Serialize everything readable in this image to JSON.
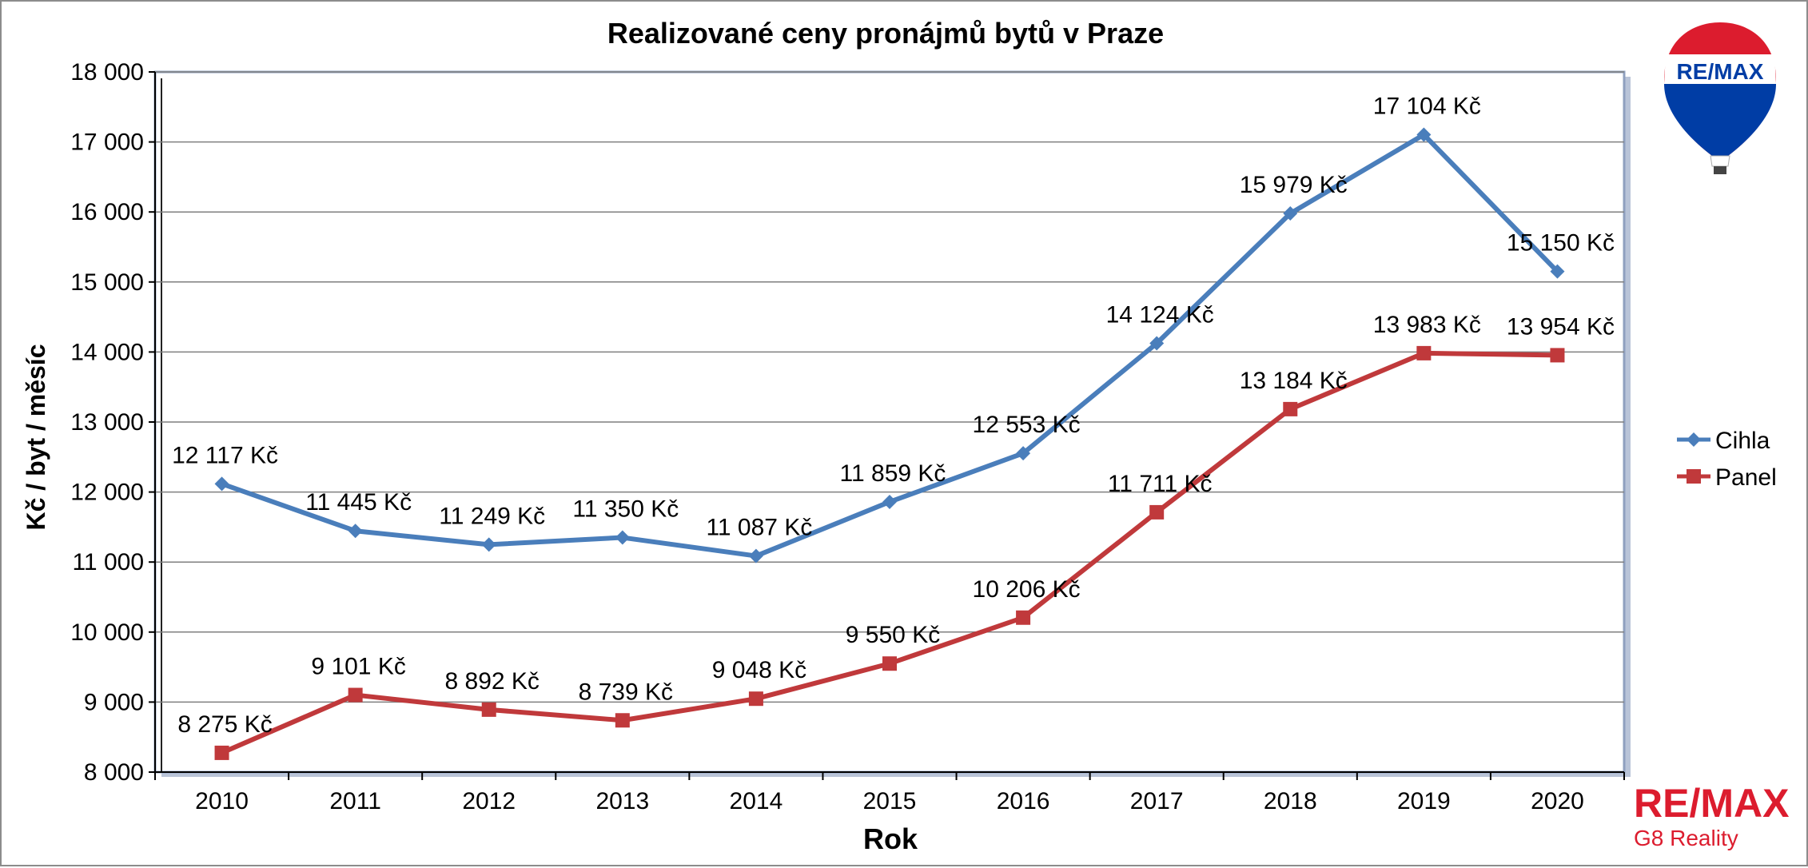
{
  "chart_data": {
    "type": "line",
    "title": "Realizované ceny pronájmů bytů v Praze",
    "xlabel": "Rok",
    "ylabel": "Kč / byt / měsíc",
    "categories": [
      "2010",
      "2011",
      "2012",
      "2013",
      "2014",
      "2015",
      "2016",
      "2017",
      "2018",
      "2019",
      "2020"
    ],
    "ylim": [
      8000,
      18000
    ],
    "yticks": [
      8000,
      9000,
      10000,
      11000,
      12000,
      13000,
      14000,
      15000,
      16000,
      17000,
      18000
    ],
    "ytick_labels": [
      "8 000",
      "9 000",
      "10 000",
      "11 000",
      "12 000",
      "13 000",
      "14 000",
      "15 000",
      "16 000",
      "17 000",
      "18 000"
    ],
    "grid": true,
    "legend_position": "right",
    "series": [
      {
        "name": "Cihla",
        "color": "#4a7ebb",
        "marker": "diamond",
        "values": [
          12117,
          11445,
          11249,
          11350,
          11087,
          11859,
          12553,
          14124,
          15979,
          17104,
          15150
        ],
        "labels": [
          "12 117 Kč",
          "11 445 Kč",
          "11 249 Kč",
          "11 350 Kč",
          "11 087 Kč",
          "11 859 Kč",
          "12 553 Kč",
          "14 124 Kč",
          "15 979 Kč",
          "17 104 Kč",
          "15 150 Kč"
        ]
      },
      {
        "name": "Panel",
        "color": "#c0393b",
        "marker": "square",
        "values": [
          8275,
          9101,
          8892,
          8739,
          9048,
          9550,
          10206,
          11711,
          13184,
          13983,
          13954
        ],
        "labels": [
          "8 275 Kč",
          "9 101 Kč",
          "8 892 Kč",
          "8 739 Kč",
          "9 048 Kč",
          "9 550 Kč",
          "10 206 Kč",
          "11 711 Kč",
          "13 184 Kč",
          "13 983 Kč",
          "13 954 Kč"
        ]
      }
    ]
  },
  "brand": {
    "balloon_text": "RE/MAX",
    "logo_text": "RE/MAX",
    "subtitle": "G8 Reality",
    "red": "#dc1c2e",
    "blue": "#003da5"
  }
}
